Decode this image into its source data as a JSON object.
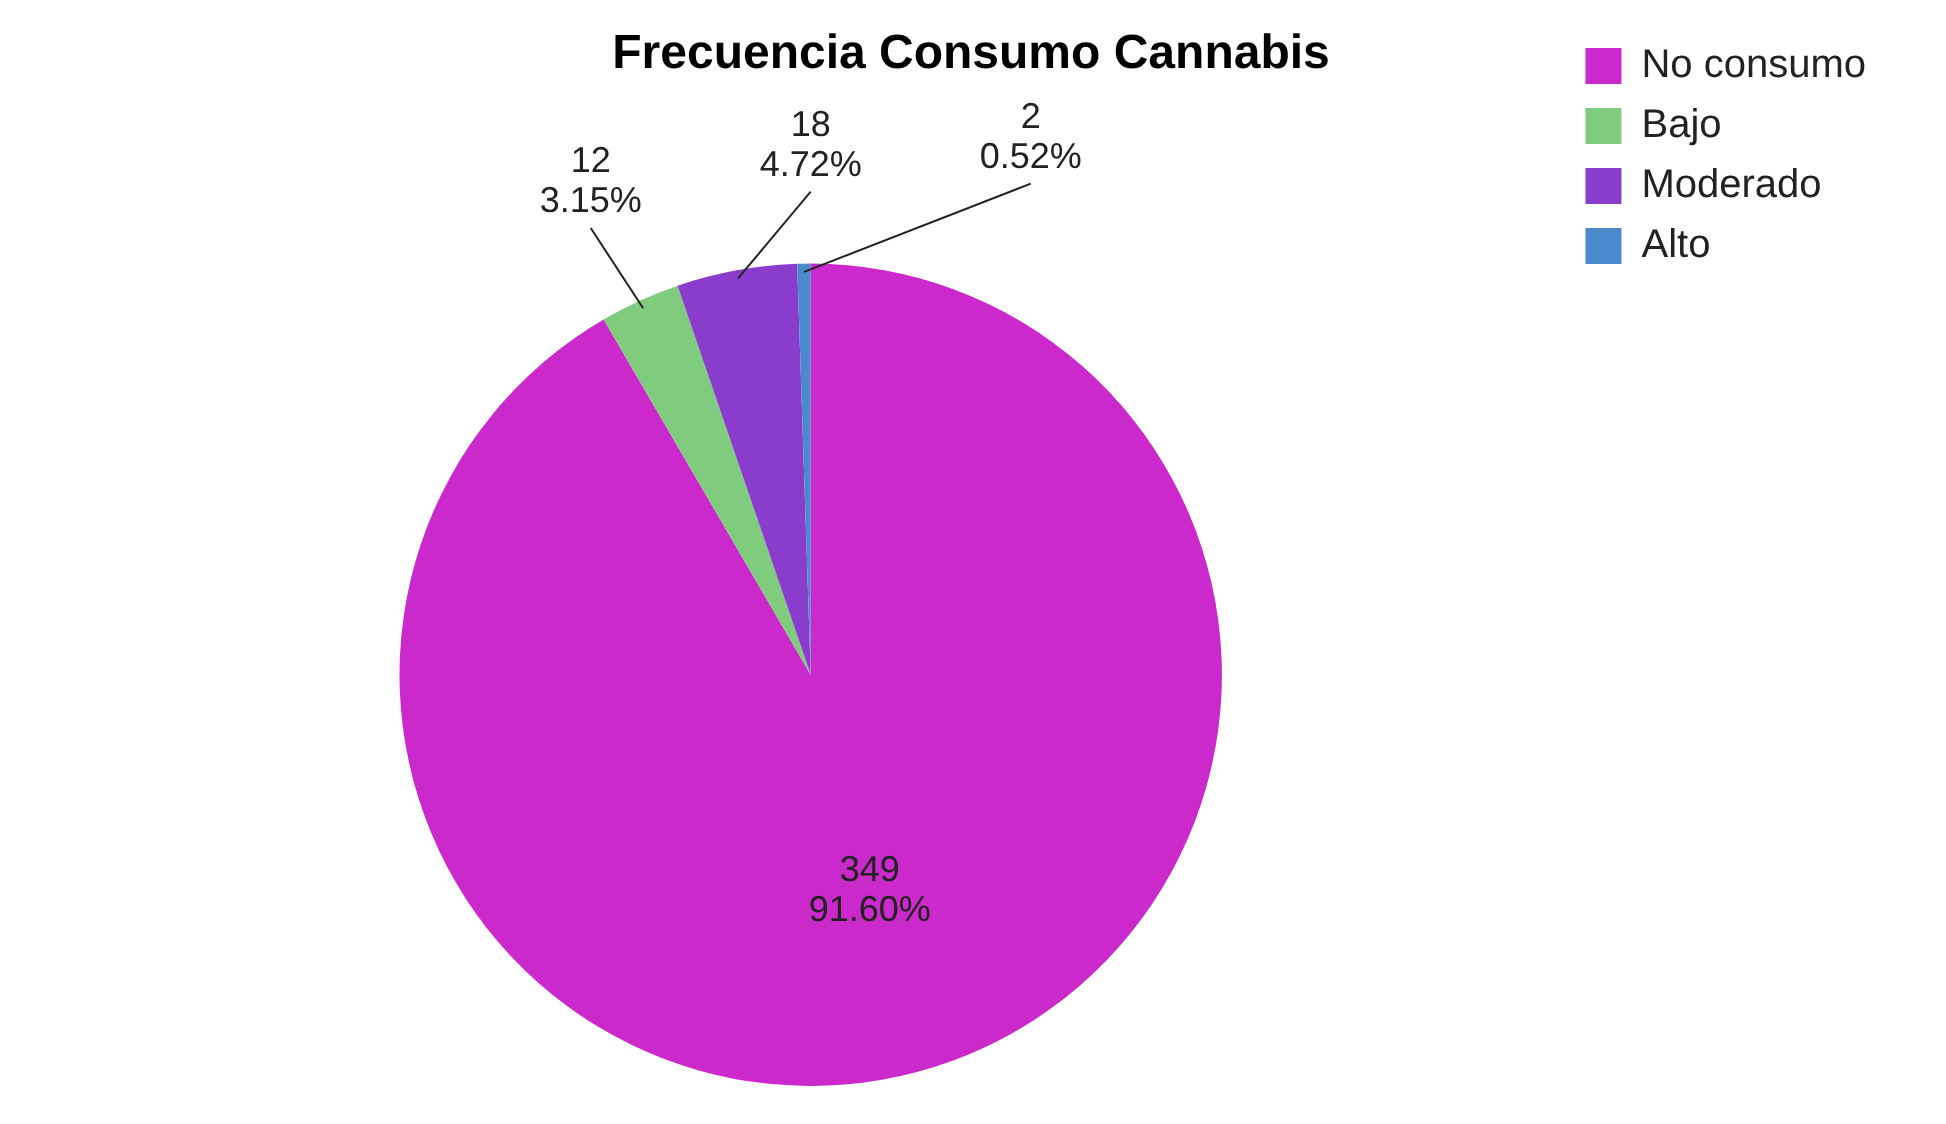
{
  "chart_data": {
    "type": "pie",
    "title": "Frecuencia Consumo Cannabis",
    "categories": [
      "No consumo",
      "Bajo",
      "Moderado",
      "Alto"
    ],
    "values": [
      349,
      12,
      18,
      2
    ],
    "colors": [
      "#cc29cc",
      "#7fcc7f",
      "#8a3dcc",
      "#4a8acc"
    ],
    "value_labels": [
      "349\n91.60%",
      "12\n3.15%",
      "18\n4.72%",
      "2\n0.52%"
    ],
    "legend": "top right"
  }
}
